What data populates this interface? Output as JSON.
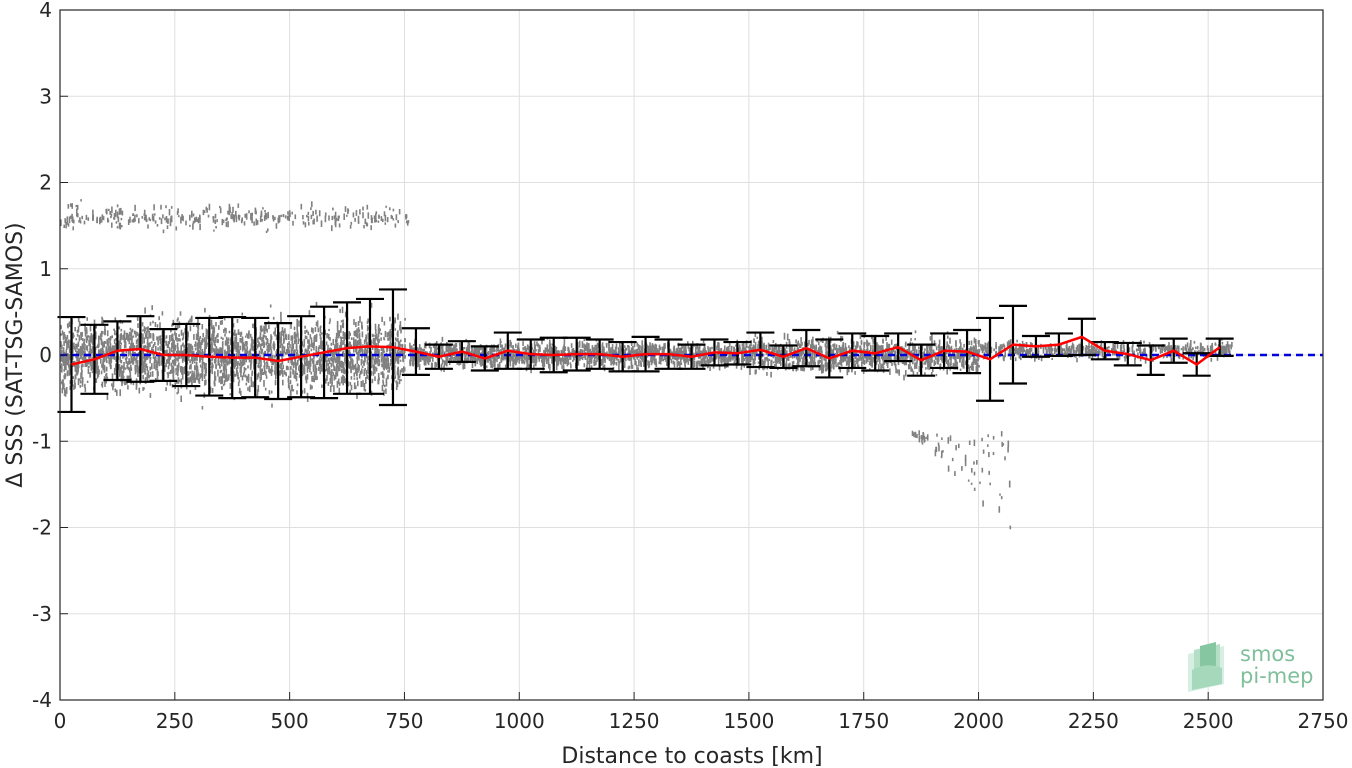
{
  "chart_data": {
    "type": "scatter",
    "xlabel": "Distance to coasts [km]",
    "ylabel": "Δ SSS (SAT-TSG-SAMOS)",
    "xlim": [
      0,
      2750
    ],
    "ylim": [
      -4,
      4
    ],
    "xticks": [
      0,
      250,
      500,
      750,
      1000,
      1250,
      1500,
      1750,
      2000,
      2250,
      2500,
      2750
    ],
    "yticks": [
      -4,
      -3,
      -2,
      -1,
      0,
      1,
      2,
      3,
      4
    ],
    "xtick_labels": [
      "0",
      "250",
      "500",
      "750",
      "1000",
      "1250",
      "1500",
      "1750",
      "2000",
      "2250",
      "2500",
      "2750"
    ],
    "ytick_labels": [
      "-4",
      "-3",
      "-2",
      "-1",
      "0",
      "1",
      "2",
      "3",
      "4"
    ],
    "grid": true,
    "colors": {
      "scatter": "#808080",
      "mean_line": "#ff0000",
      "error_bar": "#000000",
      "zero_line": "#0000dd"
    },
    "zero_line": {
      "y": 0,
      "style": "dashed",
      "x_range": [
        0,
        2750
      ]
    },
    "binned_stats": {
      "x": [
        25,
        75,
        125,
        175,
        225,
        275,
        325,
        375,
        425,
        475,
        525,
        575,
        625,
        675,
        725,
        775,
        825,
        875,
        925,
        975,
        1025,
        1075,
        1125,
        1175,
        1225,
        1275,
        1325,
        1375,
        1425,
        1475,
        1525,
        1575,
        1625,
        1675,
        1725,
        1775,
        1825,
        1875,
        1925,
        1975,
        2025,
        2075,
        2125,
        2175,
        2225,
        2275,
        2325,
        2375,
        2425,
        2475,
        2525
      ],
      "mean": [
        -0.11,
        -0.05,
        0.05,
        0.07,
        0.0,
        0.0,
        -0.02,
        -0.03,
        -0.03,
        -0.07,
        -0.02,
        0.03,
        0.08,
        0.1,
        0.09,
        0.04,
        -0.02,
        0.04,
        -0.04,
        0.05,
        0.01,
        0.0,
        0.01,
        0.01,
        -0.02,
        0.01,
        0.01,
        -0.02,
        0.03,
        0.02,
        0.06,
        -0.02,
        0.08,
        -0.04,
        0.05,
        0.02,
        0.09,
        -0.06,
        0.05,
        0.04,
        -0.05,
        0.12,
        0.1,
        0.12,
        0.21,
        0.05,
        0.01,
        -0.06,
        0.05,
        -0.11,
        0.09
      ],
      "std": [
        0.55,
        0.4,
        0.34,
        0.38,
        0.3,
        0.36,
        0.45,
        0.47,
        0.46,
        0.44,
        0.47,
        0.53,
        0.53,
        0.55,
        0.67,
        0.27,
        0.14,
        0.12,
        0.14,
        0.21,
        0.17,
        0.2,
        0.19,
        0.17,
        0.17,
        0.2,
        0.17,
        0.14,
        0.15,
        0.13,
        0.2,
        0.13,
        0.21,
        0.22,
        0.2,
        0.2,
        0.16,
        0.18,
        0.2,
        0.25,
        0.48,
        0.45,
        0.12,
        0.13,
        0.21,
        0.1,
        0.13,
        0.17,
        0.14,
        0.13,
        0.1
      ]
    },
    "scatter_clusters": [
      {
        "x": [
          0,
          750
        ],
        "y_center": 0.0,
        "y_spread": 0.35,
        "n": 2600
      },
      {
        "x": [
          0,
          760
        ],
        "y_center": 1.6,
        "y_spread": 0.12,
        "n": 320
      },
      {
        "x": [
          760,
          1500
        ],
        "y_center": 0.0,
        "y_spread": 0.12,
        "n": 1600
      },
      {
        "x": [
          1500,
          2000
        ],
        "y_center": 0.0,
        "y_spread": 0.17,
        "n": 1100
      },
      {
        "x": [
          2000,
          2550
        ],
        "y_center": 0.05,
        "y_spread": 0.08,
        "n": 500
      },
      {
        "x": [
          1850,
          2070
        ],
        "y_center": -1.4,
        "y_spread": 0.5,
        "n": 70
      }
    ]
  },
  "logo": {
    "line1": "smos",
    "line2": "pi-mep"
  }
}
